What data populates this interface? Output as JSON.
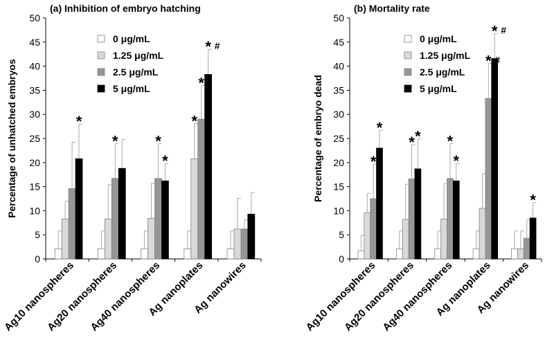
{
  "figure": {
    "legend_labels": [
      "0 μg/mL",
      "1.25 μg/mL",
      "2.5 μg/mL",
      "5 μg/mL"
    ],
    "colors": {
      "0 μg/mL": "#ffffff",
      "1.25 μg/mL": "#d9d9d9",
      "2.5 μg/mL": "#969696",
      "5 μg/mL": "#000000",
      "stroke": "#808080",
      "axis": "#000000"
    }
  },
  "chart_data": [
    {
      "type": "bar",
      "title": "(a) Inhibition of embryo hatching",
      "xlabel": "",
      "ylabel": "Percentage of unhatched embryos",
      "ylim": [
        0,
        50
      ],
      "yticks": [
        0,
        5,
        10,
        15,
        20,
        25,
        30,
        35,
        40,
        45,
        50
      ],
      "categories": [
        "Ag10 nanospheres",
        "Ag20 nanospheres",
        "Ag40 nanospheres",
        "Ag nanoplates",
        "Ag nanowires"
      ],
      "series": [
        {
          "name": "0 μg/mL",
          "values": [
            2.1,
            2.1,
            2.1,
            2.1,
            2.1
          ],
          "errors": [
            3.7,
            3.7,
            3.7,
            3.7,
            3.7
          ],
          "marks": [
            "",
            "",
            "",
            "",
            ""
          ]
        },
        {
          "name": "1.25 μg/mL",
          "values": [
            8.3,
            8.3,
            8.4,
            20.8,
            6.2
          ],
          "errors": [
            3.7,
            7.1,
            7.3,
            7.3,
            6.4
          ],
          "marks": [
            "",
            "",
            "",
            "*",
            ""
          ]
        },
        {
          "name": "2.5 μg/mL",
          "values": [
            14.6,
            16.7,
            16.7,
            29.0,
            6.2
          ],
          "errors": [
            9.6,
            7.2,
            7.2,
            7.0,
            1.9
          ],
          "marks": [
            "",
            "*",
            "*",
            "*",
            ""
          ]
        },
        {
          "name": "5 μg/mL",
          "values": [
            20.8,
            18.8,
            16.2,
            38.3,
            9.3
          ],
          "errors": [
            7.2,
            6.0,
            3.6,
            5.2,
            4.5
          ],
          "marks": [
            "*",
            "",
            "*",
            "*#",
            ""
          ]
        }
      ]
    },
    {
      "type": "bar",
      "title": "(b) Mortality rate",
      "xlabel": "",
      "ylabel": "Percentage of embryo dead",
      "ylim": [
        0,
        50
      ],
      "yticks": [
        0,
        5,
        10,
        15,
        20,
        25,
        30,
        35,
        40,
        45,
        50
      ],
      "categories": [
        "Ag10 nanospheres",
        "Ag20 nanospheres",
        "Ag40 nanospheres",
        "Ag nanoplates",
        "Ag nanowires"
      ],
      "series": [
        {
          "name": "0 μg/mL",
          "values": [
            1.7,
            2.1,
            2.1,
            2.1,
            2.1
          ],
          "errors": [
            3.2,
            3.7,
            3.7,
            3.7,
            3.7
          ],
          "marks": [
            "",
            "",
            "",
            "",
            ""
          ]
        },
        {
          "name": "1.25 μg/mL",
          "values": [
            9.6,
            8.2,
            8.3,
            10.5,
            2.1
          ],
          "errors": [
            4.0,
            7.3,
            7.3,
            7.2,
            3.7
          ],
          "marks": [
            "",
            "",
            "",
            "",
            ""
          ]
        },
        {
          "name": "2.5 μg/mL",
          "values": [
            12.5,
            16.6,
            16.7,
            33.3,
            4.3
          ],
          "errors": [
            7.2,
            7.1,
            7.2,
            7.3,
            3.8
          ],
          "marks": [
            "*",
            "*",
            "*",
            "*#",
            ""
          ]
        },
        {
          "name": "5 μg/mL",
          "values": [
            23.0,
            18.7,
            16.2,
            41.6,
            8.5
          ],
          "errors": [
            3.7,
            6.2,
            3.6,
            5.2,
            3.2
          ],
          "marks": [
            "*",
            "*",
            "*",
            "*#",
            "*"
          ]
        }
      ]
    }
  ]
}
